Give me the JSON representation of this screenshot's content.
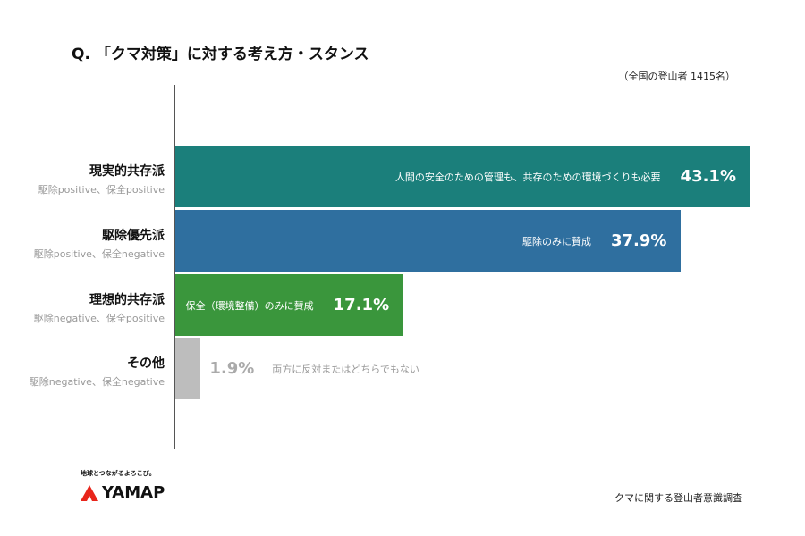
{
  "title": "Q. 「クマ対策」に対する考え方・スタンス",
  "sample_note": "（全国の登山者 1415名）",
  "footer": "クマに関する登山者意識調査",
  "logo": {
    "tagline": "地球とつながるよろこび。",
    "brand": "YAMAP",
    "mark_color": "#e8251b"
  },
  "chart_data": {
    "type": "bar",
    "orientation": "horizontal",
    "title": "Q. 「クマ対策」に対する考え方・スタンス",
    "categories": [
      "現実的共存派",
      "駆除優先派",
      "理想的共存派",
      "その他"
    ],
    "subtitles": [
      "駆除positive、保全positive",
      "駆除positive、保全negative",
      "駆除negative、保全positive",
      "駆除negative、保全negative"
    ],
    "descriptions": [
      "人間の安全のための管理も、共存のための環境づくりも必要",
      "駆除のみに賛成",
      "保全（環境整備）のみに賛成",
      "両方に反対またはどちらでもない"
    ],
    "values": [
      43.1,
      37.9,
      17.1,
      1.9
    ],
    "value_labels": [
      "43.1%",
      "37.9%",
      "17.1%",
      "1.9%"
    ],
    "colors": [
      "#1b7f7b",
      "#2f6f9f",
      "#3a963c",
      "#bdbdbd"
    ],
    "unit": "%",
    "grid": false
  }
}
